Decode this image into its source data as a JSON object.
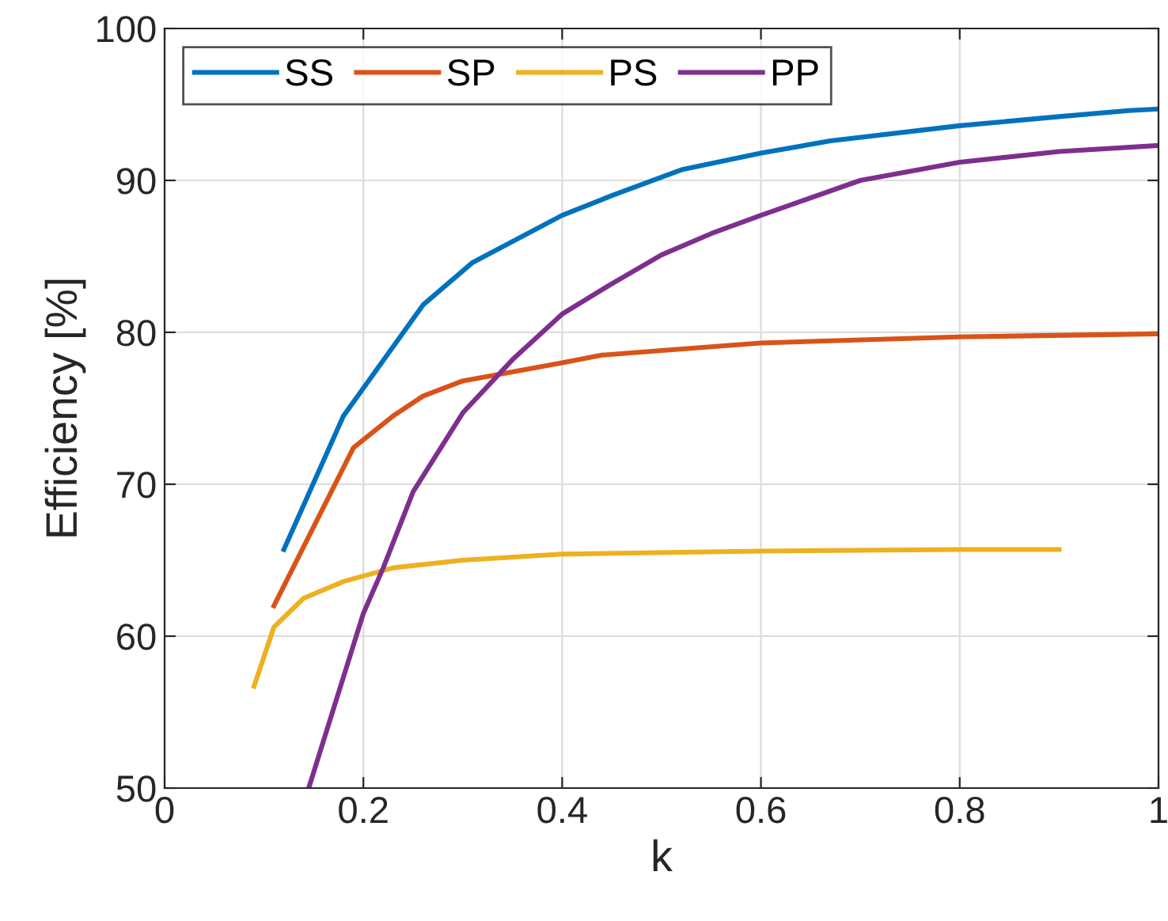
{
  "chart_data": {
    "type": "line",
    "xlabel": "k",
    "ylabel": "Efficiency [%]",
    "xlim": [
      0,
      1
    ],
    "ylim": [
      50,
      100
    ],
    "xticks": [
      0,
      0.2,
      0.4,
      0.6,
      0.8,
      1
    ],
    "yticks": [
      50,
      60,
      70,
      80,
      90,
      100
    ],
    "grid": true,
    "legend": "top left",
    "line_style": "solid",
    "series": [
      {
        "name": "SS",
        "color": "#0072bd",
        "x": [
          0.12,
          0.18,
          0.26,
          0.31,
          0.4,
          0.45,
          0.52,
          0.6,
          0.67,
          0.8,
          0.9,
          0.97,
          1
        ],
        "values": [
          65.7,
          74.5,
          81.8,
          84.6,
          87.7,
          89,
          90.7,
          91.8,
          92.6,
          93.6,
          94.2,
          94.6,
          94.7
        ]
      },
      {
        "name": "SP",
        "color": "#d95319",
        "x": [
          0.11,
          0.19,
          0.23,
          0.26,
          0.3,
          0.35,
          0.4,
          0.44,
          0.5,
          0.6,
          0.8,
          1
        ],
        "values": [
          62,
          72.4,
          74.5,
          75.8,
          76.8,
          77.4,
          78,
          78.5,
          78.8,
          79.3,
          79.7,
          79.9
        ]
      },
      {
        "name": "PS",
        "color": "#edb120",
        "x": [
          0.09,
          0.11,
          0.14,
          0.18,
          0.23,
          0.3,
          0.4,
          0.6,
          0.8,
          0.9
        ],
        "values": [
          56.7,
          60.6,
          62.5,
          63.6,
          64.5,
          65,
          65.4,
          65.6,
          65.7,
          65.7
        ]
      },
      {
        "name": "PP",
        "color": "#7e2f8e",
        "x": [
          0.145,
          0.2,
          0.22,
          0.25,
          0.3,
          0.35,
          0.4,
          0.45,
          0.5,
          0.55,
          0.6,
          0.7,
          0.8,
          0.9,
          1
        ],
        "values": [
          50,
          61.5,
          64.5,
          69.5,
          74.7,
          78.2,
          81.2,
          83.2,
          85.1,
          86.5,
          87.7,
          90,
          91.2,
          91.9,
          92.3
        ]
      }
    ]
  }
}
